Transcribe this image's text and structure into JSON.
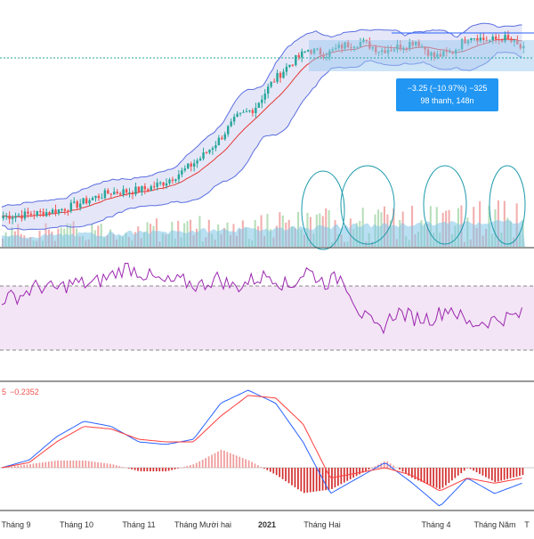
{
  "colors": {
    "up": "#26a69a",
    "down": "#ef5350",
    "bollinger_band": "#5b6ee1",
    "bollinger_fill": "#c5c9f0",
    "middle_line": "#e53935",
    "rsi_line": "#9c27b0",
    "rsi_fill": "#f3e5f5",
    "macd_line": "#2962ff",
    "signal_line": "#ff3d3d",
    "volume_area": "#7fc4e8",
    "annotation_pen": "#1b9aaa",
    "tooltip_bg": "#2196f3",
    "measure_box": "#9ec9f0"
  },
  "tooltip": {
    "line1": "−3.25 (−10.97%) −325",
    "line2": "98 thanh, 148n"
  },
  "macd_header": {
    "value_partial": "5",
    "value": "−0.2352"
  },
  "chart_data": [
    {
      "type": "line",
      "title": "",
      "description_type": "candlestick-with-bollinger-bands-and-volume",
      "x_labels": [
        "Tháng 9",
        "Tháng 10",
        "Tháng 11",
        "Tháng Mười hai",
        "2021",
        "Tháng Hai",
        "Tháng 4",
        "Tháng Năm",
        "T"
      ],
      "series": [
        {
          "values": [
            1.0,
            1.5,
            2.4,
            3.8,
            6.2,
            9.6,
            12.4,
            12.9,
            14.1,
            17.3,
            22.4,
            28.8,
            37.3,
            48.0,
            52.6,
            65.2,
            73.9,
            80.6,
            78.4,
            82.7,
            84.2,
            80.2,
            81.8,
            84.8,
            77.1,
            79.1,
            87.4,
            84.8,
            86.0,
            80.4
          ]
        }
      ],
      "ylim": [
        0,
        100
      ],
      "annotations": [
        "tooltip",
        "measure-box",
        "hand-drawn circles over volume"
      ]
    },
    {
      "type": "line",
      "title": "",
      "description_type": "RSI",
      "series": [
        {
          "values": [
            62,
            64,
            70,
            68,
            72,
            71,
            76,
            82,
            77,
            72,
            73,
            70,
            75,
            69,
            74,
            77,
            69,
            80,
            72,
            76,
            53,
            42,
            54,
            50,
            50,
            57,
            46,
            48,
            50,
            52
          ]
        }
      ],
      "bands": [
        30,
        70
      ]
    },
    {
      "type": "line",
      "title": "",
      "description_type": "MACD",
      "series": [
        {
          "values": [
            0.0,
            0.3,
            1.2,
            1.8,
            1.6,
            1.0,
            0.9,
            1.1,
            2.5,
            3.0,
            2.5,
            1.0,
            -1.0,
            -0.4,
            0.2,
            -0.6,
            -1.5,
            -0.4,
            -1.0,
            -0.6
          ]
        },
        {
          "values": [
            0.0,
            0.2,
            1.0,
            1.6,
            1.5,
            1.1,
            1.0,
            1.0,
            2.0,
            2.8,
            2.7,
            1.7,
            -0.4,
            -0.2,
            0.0,
            -0.3,
            -0.9,
            -0.4,
            -0.6,
            -0.4
          ]
        }
      ]
    }
  ]
}
